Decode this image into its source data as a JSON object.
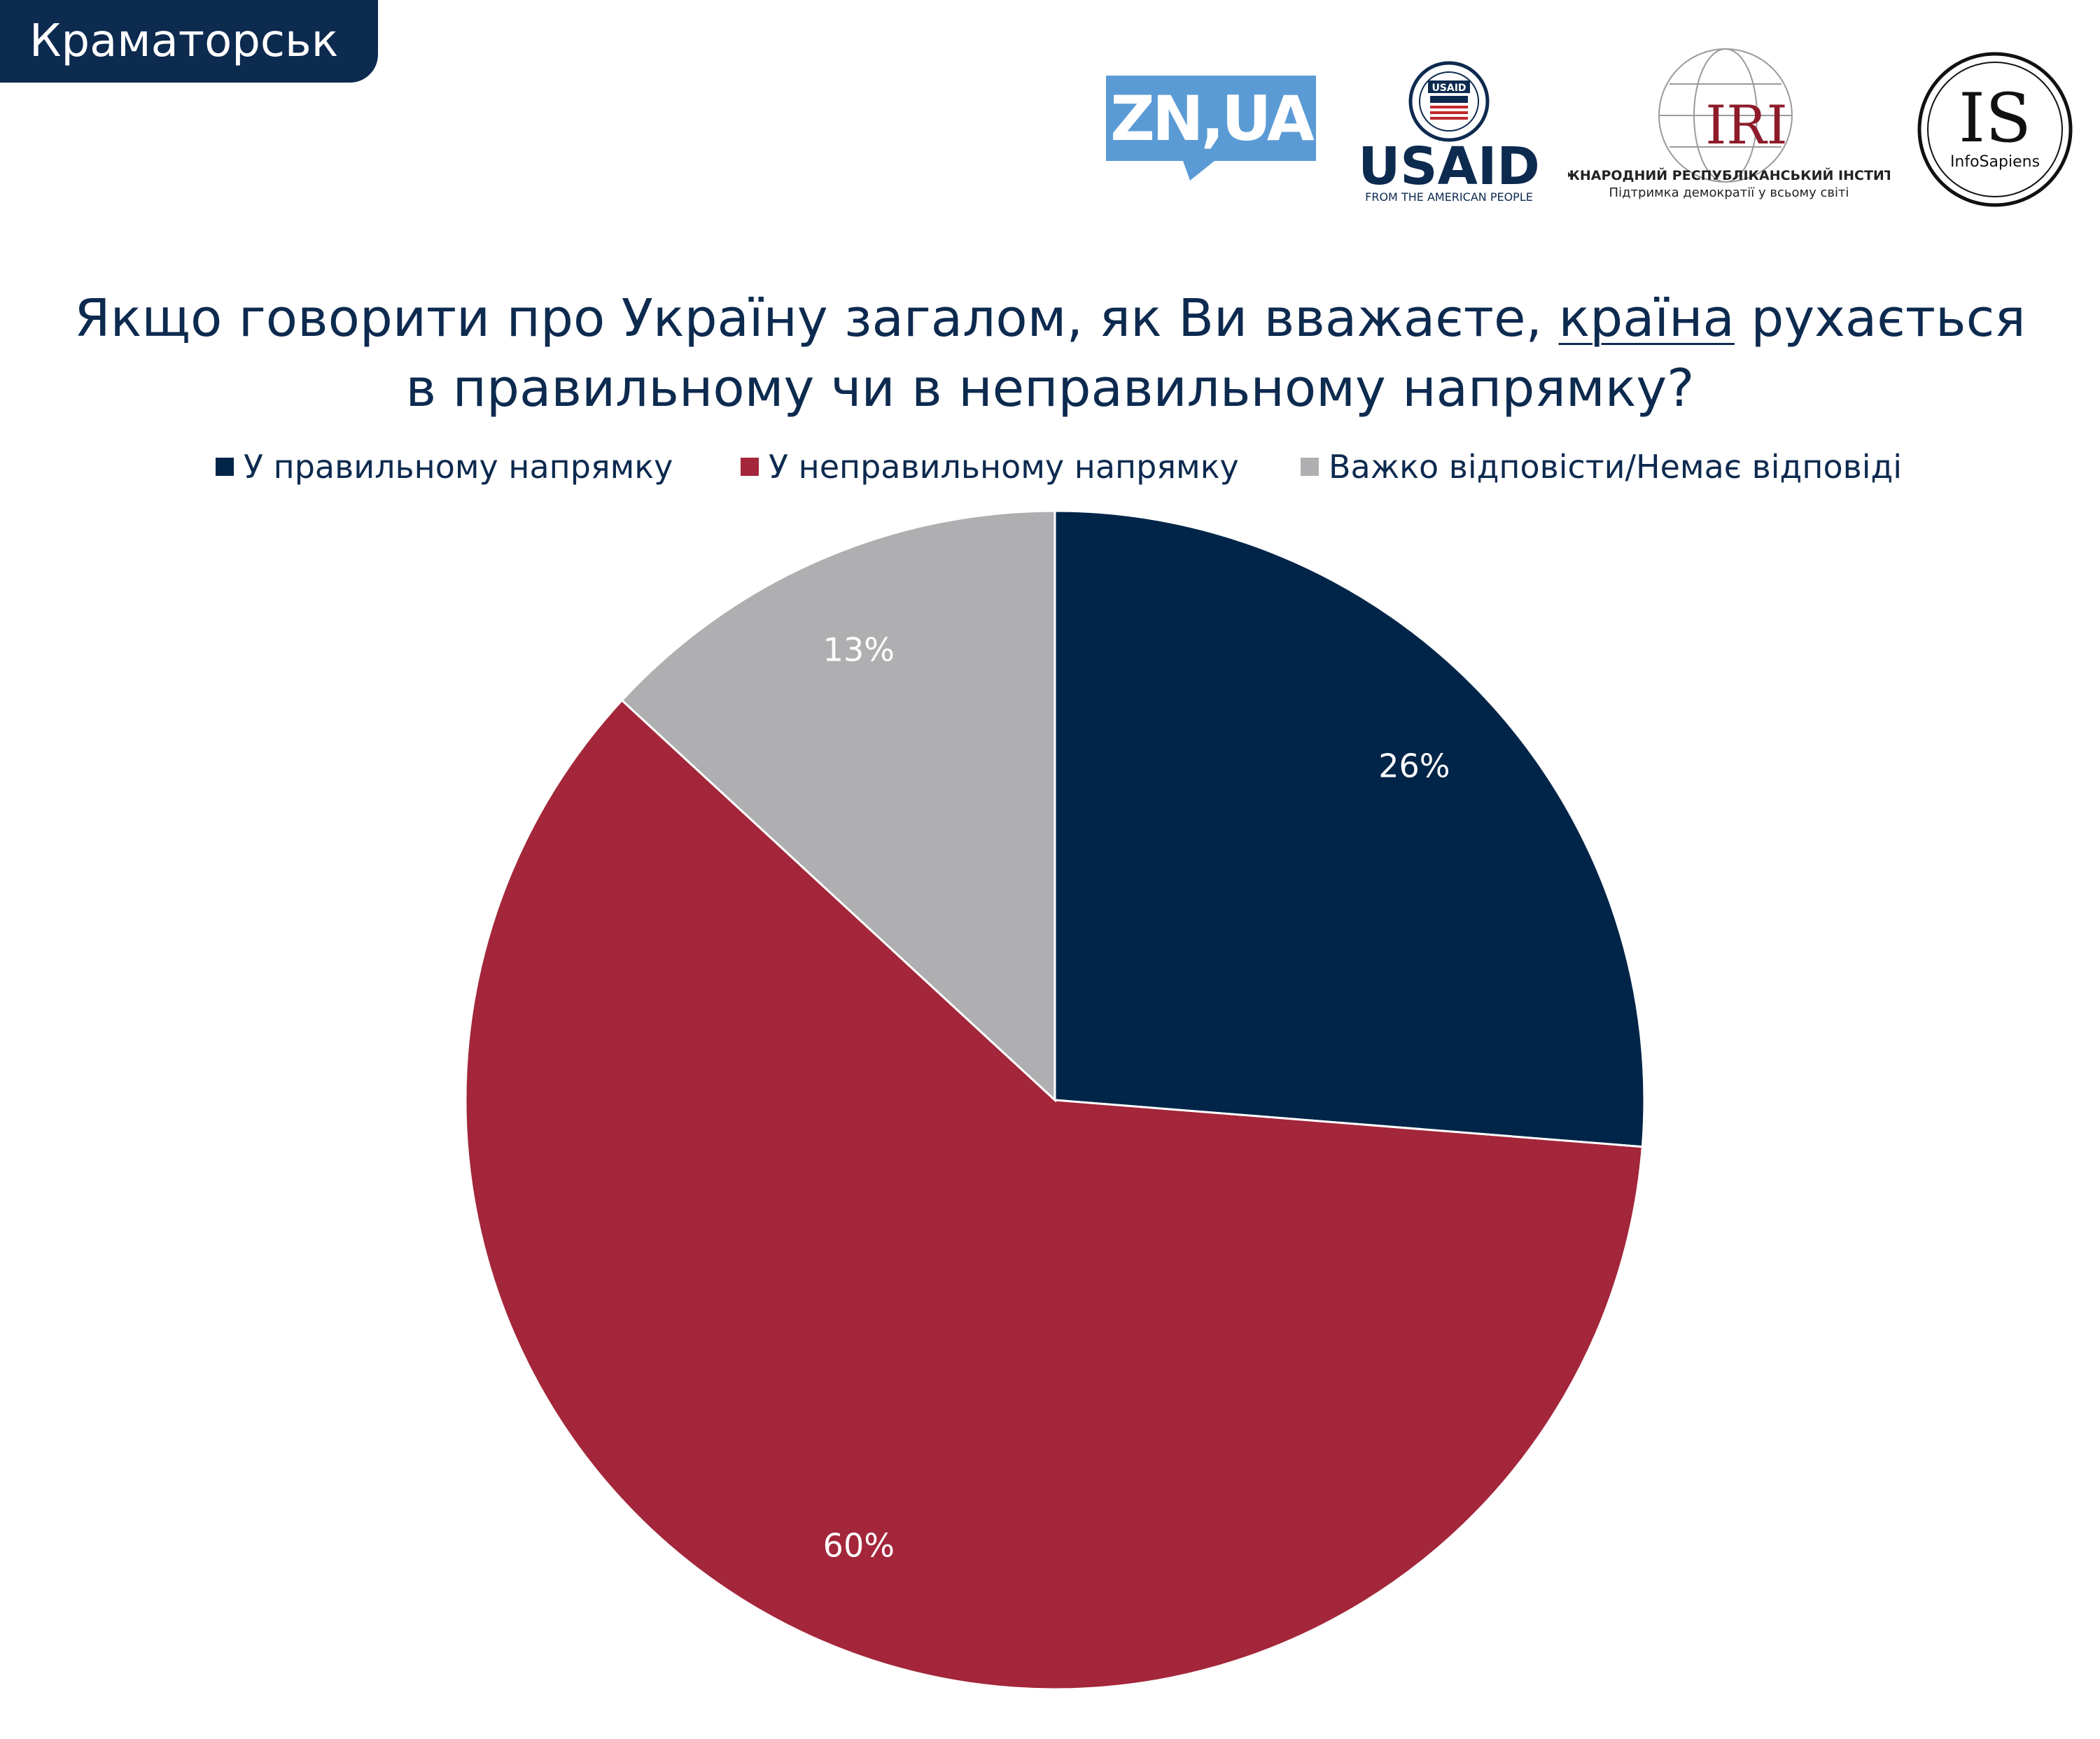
{
  "city_tab": {
    "label": "Краматорськ"
  },
  "logos": {
    "zn": "ZN,UA",
    "usaid_name": "USAID",
    "usaid_tagline": "FROM THE AMERICAN PEOPLE",
    "usaid_seal_text": "USAID",
    "iri_name": "IRI",
    "iri_line1": "МІЖНАРОДНИЙ РЕСПУБЛІКАНСЬКИЙ ІНСТИТУТ",
    "iri_line2": "Підтримка демократії у всьому світі",
    "is_letters": "IS",
    "is_name": "InfoSapiens"
  },
  "title": {
    "before_underline": "Якщо говорити про Україну загалом, як Ви вважаєте, ",
    "underlined": "країна",
    "after_underline": " рухається",
    "line2": "в правильному чи в неправильному напрямку?"
  },
  "chart_data": {
    "type": "pie",
    "title": "Якщо говорити про Україну загалом, як Ви вважаєте, країна рухається в правильному чи в неправильному напрямку?",
    "legend_position": "top",
    "series": [
      {
        "name": "У правильному напрямку",
        "value": 26,
        "label": "26%",
        "color": "#012548"
      },
      {
        "name": "У неправильному напрямку",
        "value": 60,
        "label": "60%",
        "color": "#a3263a"
      },
      {
        "name": "Важко відповісти/Немає відповіді",
        "value": 13,
        "label": "13%",
        "color": "#afafb1"
      }
    ]
  },
  "colors": {
    "navy": "#0d2a4f",
    "label_text": "#ffffff",
    "zn_blue": "#5b9bd5",
    "usaid_red": "#c1272d",
    "iri_red": "#8e1b2a"
  }
}
